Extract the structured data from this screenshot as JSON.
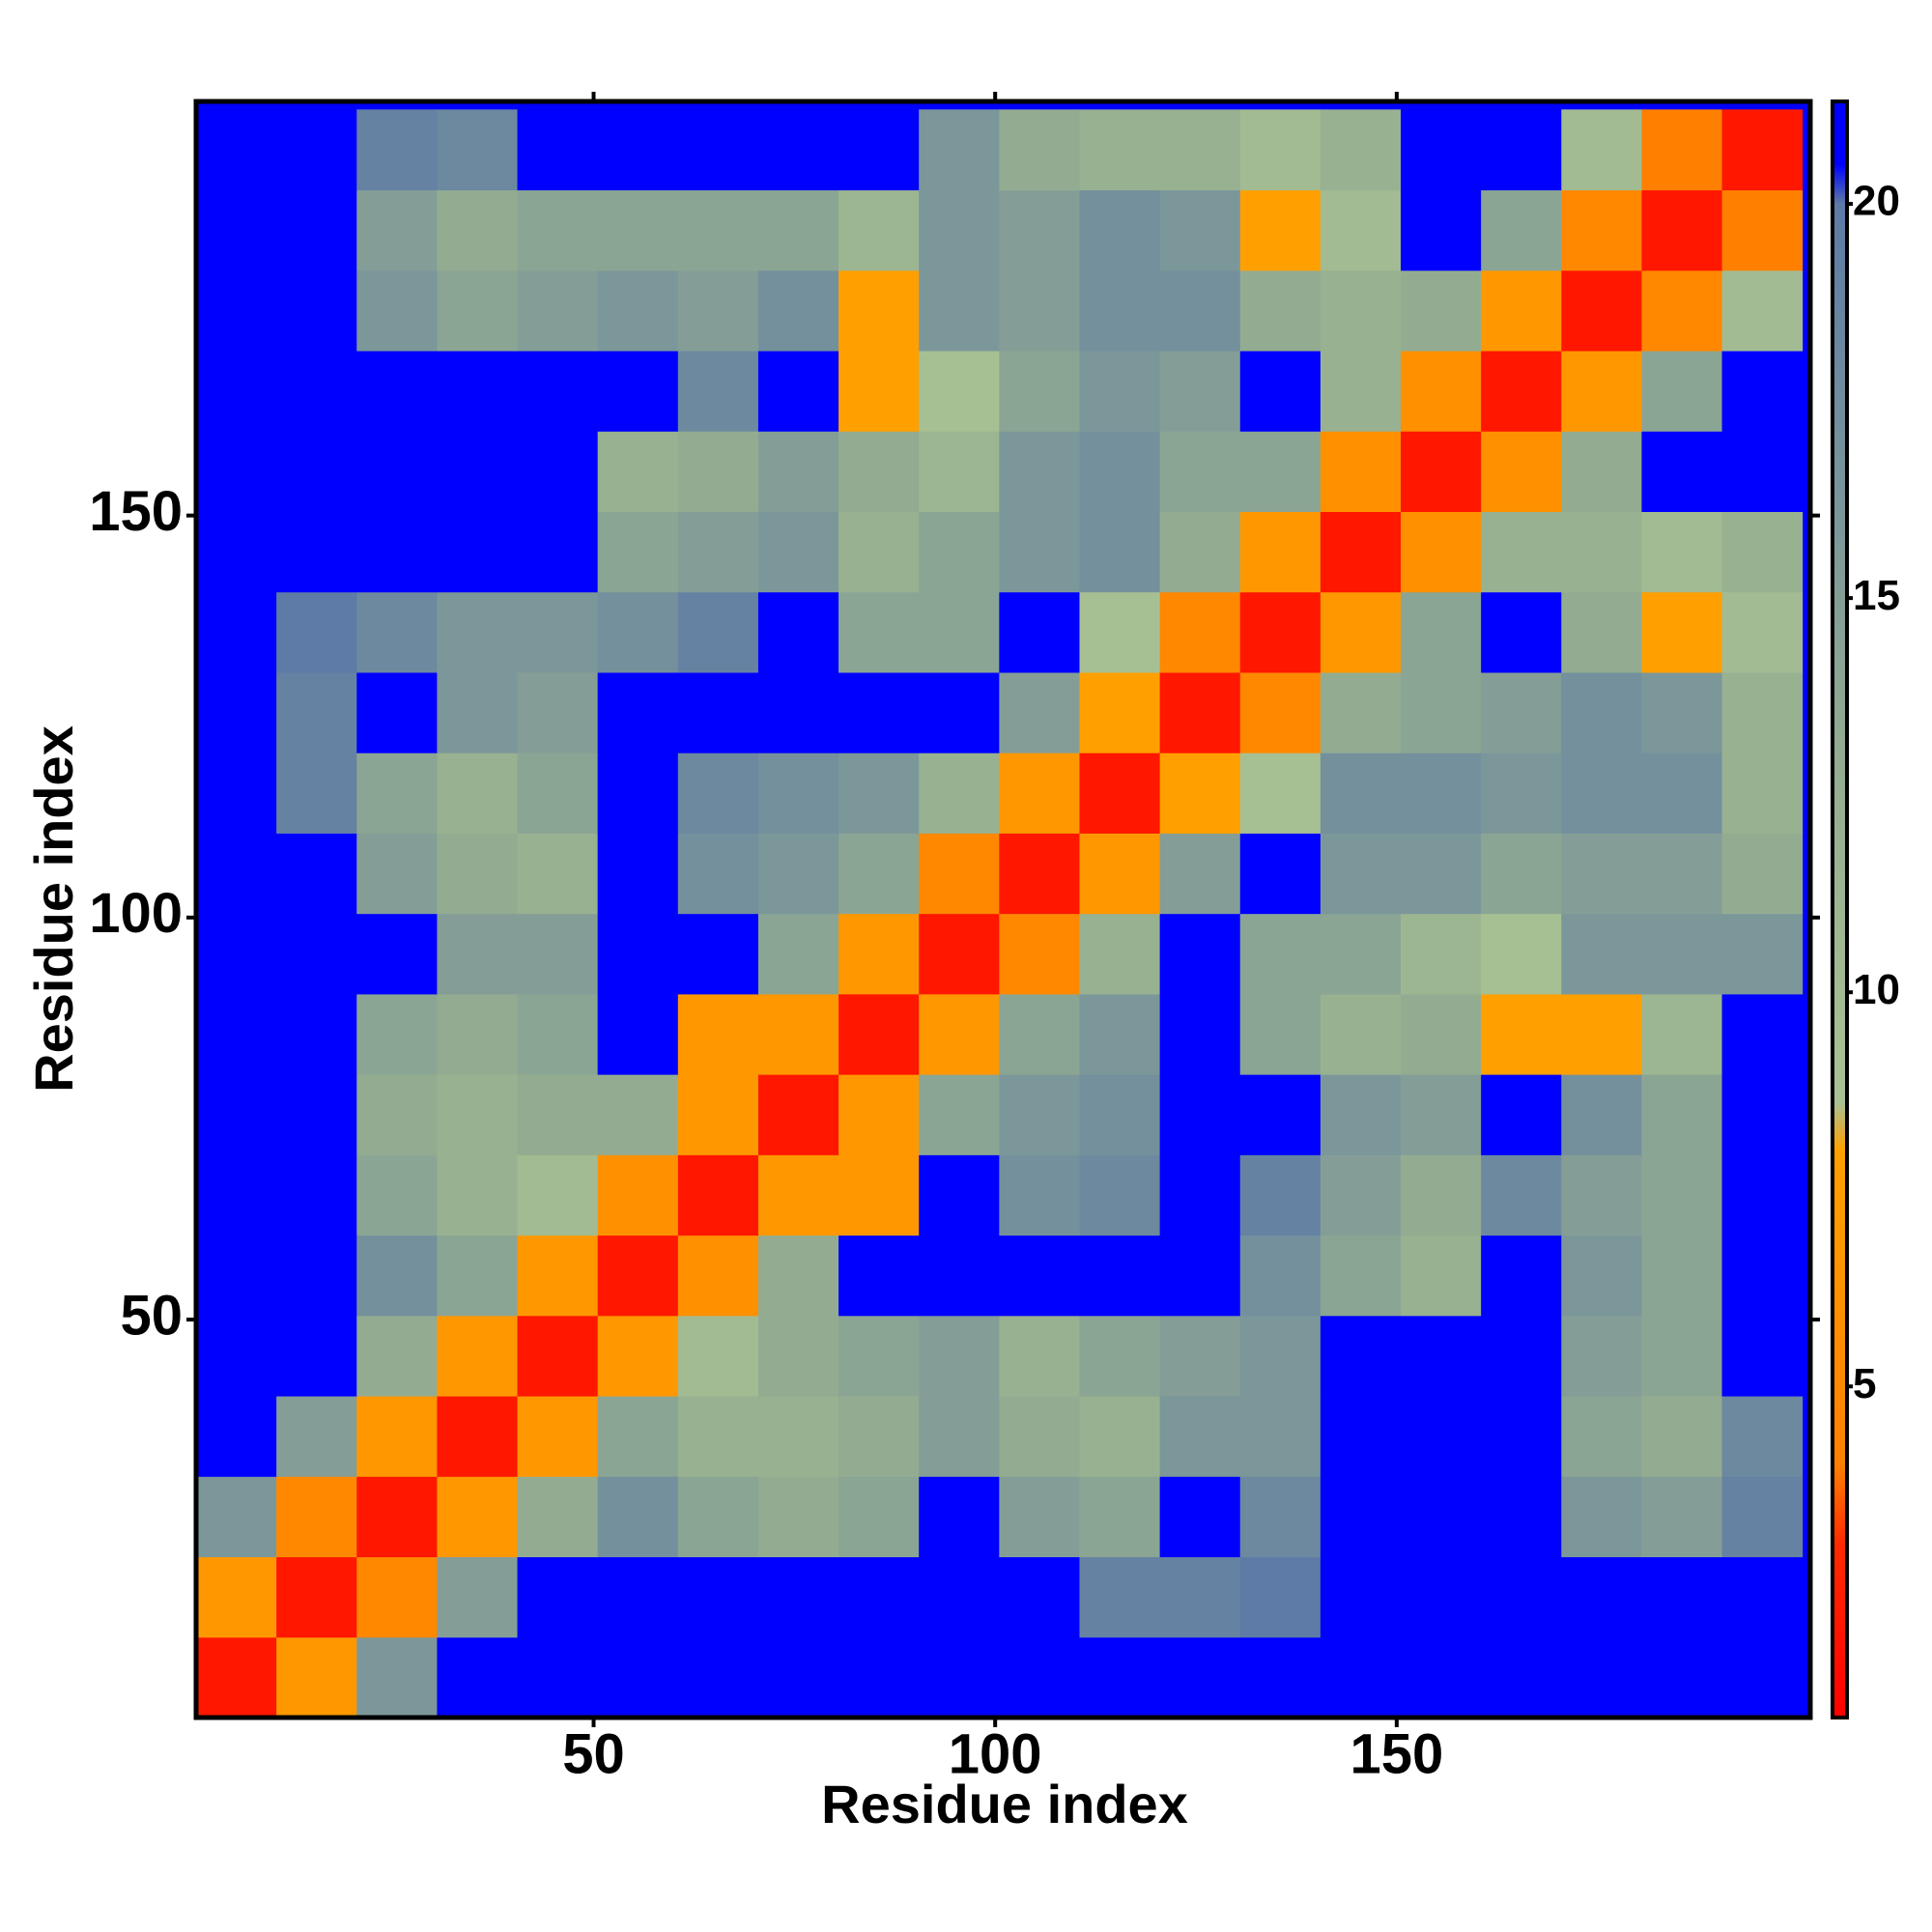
{
  "chart_data": {
    "type": "heatmap",
    "xlabel": "Residue index",
    "ylabel": "Residue index",
    "x": [
      5.5,
      15.5,
      25.5,
      35.5,
      45.5,
      55.5,
      65.5,
      75.5,
      85.5,
      95.5,
      105.5,
      115.5,
      125.5,
      135.5,
      145.5,
      155.5,
      165.5,
      175.5,
      185.5,
      195.5
    ],
    "y": [
      5.5,
      15.5,
      25.5,
      35.5,
      45.5,
      55.5,
      65.5,
      75.5,
      85.5,
      95.5,
      105.5,
      115.5,
      125.5,
      135.5,
      145.5,
      155.5,
      165.5,
      175.5,
      185.5,
      195.5
    ],
    "z": [
      [
        2,
        7,
        16,
        21,
        21,
        21,
        21,
        21,
        21,
        21,
        21,
        21,
        21,
        21,
        21,
        21,
        21,
        21,
        21,
        21
      ],
      [
        7,
        2,
        5,
        15,
        21,
        21,
        21,
        21,
        21,
        21,
        21,
        19,
        19,
        20,
        21,
        21,
        21,
        21,
        21,
        21
      ],
      [
        16,
        5,
        2,
        7,
        13,
        17,
        14,
        13,
        14,
        21,
        15,
        14,
        21,
        18,
        21,
        21,
        21,
        16,
        15,
        19
      ],
      [
        21,
        15,
        7,
        2,
        7,
        14,
        12,
        12,
        13,
        15,
        13,
        12,
        16,
        16,
        21,
        21,
        21,
        14,
        13,
        18
      ],
      [
        21,
        21,
        13,
        7,
        2,
        7,
        10,
        13,
        14,
        15,
        12,
        14,
        15,
        16,
        21,
        21,
        21,
        15,
        14,
        21
      ],
      [
        21,
        21,
        17,
        14,
        7,
        2,
        6,
        13,
        21,
        21,
        21,
        21,
        21,
        17,
        14,
        12,
        21,
        16,
        14,
        21
      ],
      [
        21,
        21,
        14,
        12,
        10,
        6,
        2,
        7,
        7,
        21,
        17,
        18,
        21,
        19,
        15,
        13,
        18,
        15,
        14,
        21
      ],
      [
        21,
        21,
        13,
        12,
        13,
        13,
        7,
        2,
        7,
        14,
        16,
        17,
        21,
        21,
        16,
        15,
        21,
        17,
        14,
        21
      ],
      [
        21,
        21,
        14,
        13,
        14,
        21,
        7,
        7,
        2,
        7,
        14,
        16,
        21,
        14,
        12,
        13,
        8,
        8,
        11,
        21
      ],
      [
        21,
        21,
        21,
        15,
        15,
        21,
        21,
        14,
        7,
        2,
        5,
        12,
        21,
        14,
        14,
        11,
        9,
        16,
        16,
        16
      ],
      [
        21,
        21,
        15,
        13,
        12,
        21,
        17,
        16,
        14,
        5,
        2,
        7,
        15,
        21,
        16,
        16,
        14,
        15,
        15,
        13
      ],
      [
        21,
        19,
        14,
        12,
        14,
        21,
        18,
        17,
        16,
        12,
        7,
        2,
        8,
        9,
        17,
        17,
        16,
        17,
        17,
        12
      ],
      [
        21,
        19,
        21,
        16,
        15,
        21,
        21,
        21,
        21,
        21,
        15,
        8,
        2,
        5,
        13,
        14,
        15,
        17,
        16,
        12
      ],
      [
        21,
        20,
        18,
        16,
        16,
        17,
        19,
        21,
        14,
        14,
        21,
        9,
        5,
        2,
        7,
        14,
        21,
        13,
        8,
        10
      ],
      [
        21,
        21,
        21,
        21,
        21,
        14,
        15,
        16,
        12,
        14,
        16,
        17,
        13,
        7,
        2,
        6,
        12,
        12,
        10,
        12
      ],
      [
        21,
        21,
        21,
        21,
        21,
        12,
        13,
        15,
        13,
        11,
        16,
        17,
        14,
        14,
        6,
        2,
        6,
        13,
        21,
        21
      ],
      [
        21,
        21,
        21,
        21,
        21,
        21,
        18,
        21,
        8,
        9,
        14,
        16,
        15,
        21,
        12,
        6,
        2,
        7,
        14,
        21
      ],
      [
        21,
        21,
        16,
        14,
        15,
        16,
        15,
        17,
        8,
        16,
        15,
        17,
        17,
        13,
        12,
        13,
        7,
        2,
        5,
        10
      ],
      [
        21,
        21,
        15,
        13,
        14,
        14,
        14,
        14,
        11,
        16,
        15,
        17,
        16,
        8,
        10,
        21,
        14,
        5,
        2,
        4
      ],
      [
        21,
        21,
        19,
        18,
        21,
        21,
        21,
        21,
        21,
        16,
        13,
        12,
        12,
        10,
        12,
        21,
        21,
        10,
        4,
        2
      ]
    ],
    "xlim": [
      0.5,
      201.5
    ],
    "ylim": [
      0.5,
      201.5
    ],
    "xticks": [
      50,
      100,
      150
    ],
    "yticks": [
      50,
      100,
      150
    ],
    "clim": [
      0.8,
      21.3
    ],
    "cticks": [
      5,
      10,
      15,
      20
    ],
    "colorscale": [
      [
        0.8,
        "#ff0000"
      ],
      [
        3,
        "#ff2a00"
      ],
      [
        4,
        "#ff8000"
      ],
      [
        8,
        "#ffa000"
      ],
      [
        8.6,
        "#a9c293"
      ],
      [
        13,
        "#93ac91"
      ],
      [
        20,
        "#5d7ba6"
      ],
      [
        20.5,
        "#0000ff"
      ],
      [
        21.3,
        "#0000ff"
      ]
    ],
    "background": "#0000ff"
  }
}
